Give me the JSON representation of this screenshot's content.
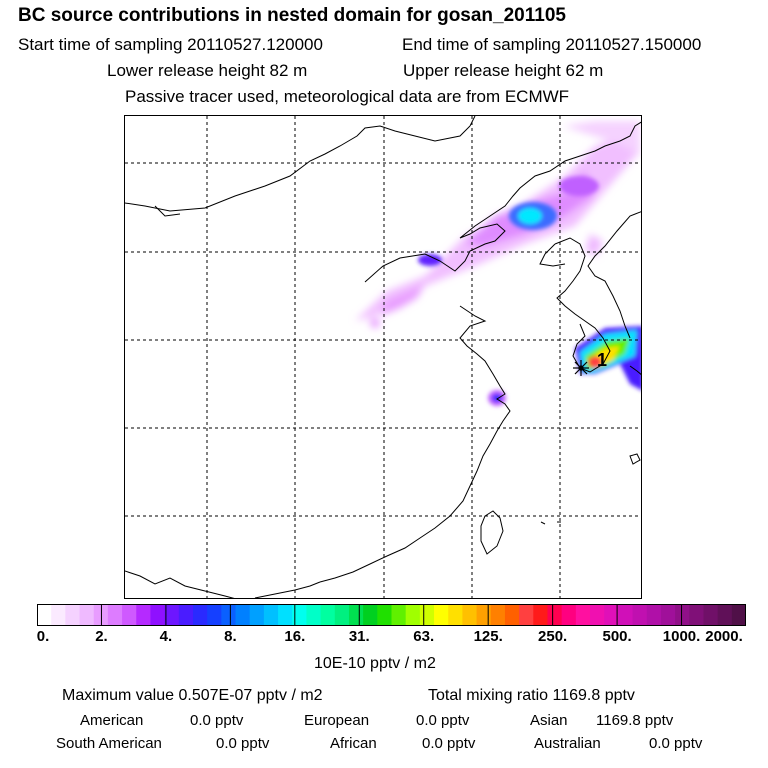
{
  "title": "BC  source contributions in nested domain for gosan_201105",
  "header": {
    "start_time": "Start time of sampling 20110527.120000",
    "end_time": "End time of sampling 20110527.150000",
    "lower_release": "Lower release height   82 m",
    "upper_release": "Upper release height   62 m",
    "note": "Passive tracer used, meteorological data are from ECMWF"
  },
  "map": {
    "receptor_label": "1"
  },
  "colorbar": {
    "tick_labels": [
      "0.",
      "2.",
      "4.",
      "8.",
      "16.",
      "31.",
      "63.",
      "125.",
      "250.",
      "500.",
      "1000.",
      "2000."
    ],
    "units": "10E-10 pptv / m2",
    "colors": [
      "#ffffff",
      "#fbeaff",
      "#f5d2ff",
      "#efbaff",
      "#e89cff",
      "#dd7cff",
      "#cf59ff",
      "#b52aff",
      "#8f10ff",
      "#6d16ff",
      "#4a1cff",
      "#2a2aff",
      "#1540ff",
      "#0a60ff",
      "#0080ff",
      "#00a0ff",
      "#00c0ff",
      "#00e0ff",
      "#00ffee",
      "#00ffc8",
      "#00ffa0",
      "#00f080",
      "#00e050",
      "#00d020",
      "#20e000",
      "#60f000",
      "#a0ff00",
      "#d0ff00",
      "#ffff00",
      "#ffe000",
      "#ffc000",
      "#ffa000",
      "#ff8000",
      "#ff6000",
      "#ff4040",
      "#ff1a1a",
      "#ff0050",
      "#ff0080",
      "#ff10a0",
      "#f010b0",
      "#e010b8",
      "#d010b8",
      "#c010b0",
      "#b010a8",
      "#a0109a",
      "#901088",
      "#801078",
      "#701068",
      "#601058",
      "#501048"
    ]
  },
  "summary": {
    "max_value": "Maximum value  0.507E-07 pptv / m2",
    "total_mixing": "Total mixing ratio     1169.8 pptv",
    "regions": [
      {
        "name": "American",
        "value": "0.0 pptv"
      },
      {
        "name": "European",
        "value": "0.0 pptv"
      },
      {
        "name": "Asian",
        "value": "1169.8 pptv"
      },
      {
        "name": "South American",
        "value": "0.0 pptv"
      },
      {
        "name": "African",
        "value": "0.0 pptv"
      },
      {
        "name": "Australian",
        "value": "0.0 pptv"
      }
    ]
  }
}
